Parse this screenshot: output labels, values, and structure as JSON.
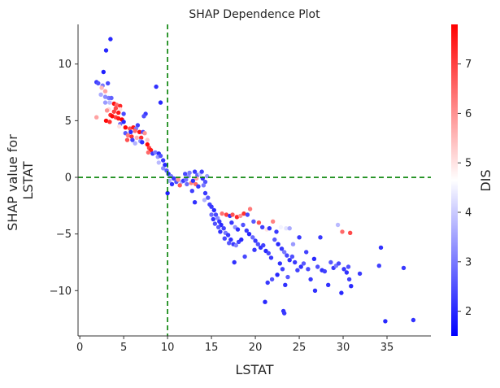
{
  "chart_data": {
    "type": "scatter",
    "title": "SHAP Dependence Plot",
    "xlabel": "LSTAT",
    "ylabel": "SHAP value for\nLSTAT",
    "xlim": [
      -0.2,
      40
    ],
    "ylim": [
      -14,
      13.5
    ],
    "xticks": [
      "0",
      "5",
      "10",
      "15",
      "20",
      "25",
      "30",
      "35"
    ],
    "yticks": [
      "10",
      "5",
      "0",
      "−5",
      "−10"
    ],
    "grid": false,
    "reference_lines": [
      {
        "orientation": "vertical",
        "value": 10,
        "color": "#008000",
        "style": "dashed"
      },
      {
        "orientation": "horizontal",
        "value": 0,
        "color": "#008000",
        "style": "dashed"
      }
    ],
    "colorbar": {
      "label": "DIS",
      "ticks": [
        "2",
        "3",
        "4",
        "5",
        "6",
        "7"
      ],
      "range": [
        1.5,
        7.8
      ],
      "colormap": [
        "#0000ff",
        "#ffffff",
        "#ff0000"
      ]
    },
    "points": [
      [
        3.5,
        12.2,
        2.0
      ],
      [
        3.0,
        11.2,
        2.0
      ],
      [
        2.7,
        9.3,
        1.9
      ],
      [
        1.9,
        8.4,
        2.2
      ],
      [
        2.1,
        8.3,
        2.5
      ],
      [
        2.6,
        8.1,
        3.0
      ],
      [
        3.2,
        8.3,
        2.4
      ],
      [
        8.7,
        8.0,
        2.1
      ],
      [
        9.2,
        6.6,
        2.0
      ],
      [
        2.5,
        7.9,
        5.5
      ],
      [
        2.9,
        7.6,
        5.8
      ],
      [
        2.4,
        7.3,
        3.6
      ],
      [
        2.9,
        7.1,
        3.2
      ],
      [
        3.3,
        7.0,
        3.0
      ],
      [
        3.6,
        7.0,
        2.7
      ],
      [
        2.9,
        6.6,
        3.4
      ],
      [
        3.4,
        6.6,
        3.8
      ],
      [
        3.9,
        6.5,
        7.6
      ],
      [
        4.2,
        6.4,
        6.5
      ],
      [
        4.6,
        6.3,
        7.3
      ],
      [
        4.1,
        6.1,
        6.9
      ],
      [
        3.3,
        6.0,
        5.1
      ],
      [
        4.6,
        6.0,
        5.0
      ],
      [
        3.1,
        5.9,
        6.0
      ],
      [
        3.9,
        5.8,
        7.0
      ],
      [
        4.4,
        5.7,
        7.5
      ],
      [
        5.0,
        5.6,
        2.4
      ],
      [
        3.5,
        5.5,
        7.2
      ],
      [
        3.7,
        5.4,
        7.7
      ],
      [
        4.1,
        5.3,
        7.0
      ],
      [
        4.4,
        5.2,
        7.5
      ],
      [
        4.8,
        5.1,
        7.8
      ],
      [
        1.9,
        5.3,
        5.8
      ],
      [
        3.0,
        5.0,
        7.7
      ],
      [
        3.4,
        4.9,
        7.2
      ],
      [
        4.6,
        4.7,
        2.8
      ],
      [
        5.0,
        4.9,
        2.0
      ],
      [
        4.5,
        4.5,
        5.0
      ],
      [
        5.2,
        4.4,
        7.7
      ],
      [
        5.7,
        4.3,
        6.8
      ],
      [
        6.1,
        4.4,
        7.5
      ],
      [
        6.6,
        4.6,
        2.3
      ],
      [
        6.4,
        4.3,
        3.0
      ],
      [
        5.8,
        4.0,
        2.0
      ],
      [
        6.3,
        4.1,
        6.5
      ],
      [
        6.8,
        4.0,
        7.6
      ],
      [
        7.2,
        4.0,
        2.4
      ],
      [
        7.4,
        3.9,
        6.0
      ],
      [
        5.2,
        3.9,
        2.6
      ],
      [
        5.5,
        3.7,
        6.3
      ],
      [
        5.9,
        3.6,
        7.2
      ],
      [
        6.5,
        3.5,
        5.6
      ],
      [
        7.0,
        3.5,
        7.3
      ],
      [
        5.4,
        3.3,
        6.8
      ],
      [
        6.0,
        3.3,
        2.3
      ],
      [
        6.9,
        3.2,
        3.3
      ],
      [
        7.7,
        3.3,
        5.3
      ],
      [
        6.3,
        3.0,
        3.7
      ],
      [
        7.1,
        3.1,
        2.1
      ],
      [
        7.5,
        5.6,
        2.2
      ],
      [
        7.3,
        5.4,
        2.5
      ],
      [
        7.7,
        2.9,
        7.7
      ],
      [
        7.9,
        2.6,
        7.0
      ],
      [
        8.1,
        2.4,
        7.5
      ],
      [
        7.8,
        2.2,
        6.5
      ],
      [
        8.3,
        2.1,
        2.2
      ],
      [
        8.6,
        2.2,
        3.0
      ],
      [
        9.0,
        2.1,
        2.0
      ],
      [
        8.9,
        1.8,
        3.4
      ],
      [
        9.2,
        1.9,
        2.5
      ],
      [
        9.5,
        1.5,
        2.2
      ],
      [
        9.0,
        1.3,
        3.8
      ],
      [
        9.7,
        1.1,
        2.0
      ],
      [
        9.5,
        0.8,
        3.2
      ],
      [
        9.9,
        0.6,
        2.6
      ],
      [
        10.1,
        0.3,
        2.0
      ],
      [
        10.4,
        0.1,
        3.0
      ],
      [
        10.7,
        -0.1,
        2.2
      ],
      [
        10.2,
        -0.3,
        3.6
      ],
      [
        10.0,
        -1.4,
        1.9
      ],
      [
        11.0,
        -0.4,
        2.5
      ],
      [
        11.2,
        -0.2,
        6.0
      ],
      [
        11.6,
        -0.4,
        3.7
      ],
      [
        11.8,
        -0.3,
        2.2
      ],
      [
        12.1,
        -0.2,
        2.9
      ],
      [
        12.4,
        0.1,
        3.3
      ],
      [
        12.7,
        -0.5,
        6.2
      ],
      [
        12.9,
        -0.3,
        2.1
      ],
      [
        13.2,
        -0.6,
        6.5
      ],
      [
        12.0,
        0.3,
        2.4
      ],
      [
        12.5,
        0.4,
        3.0
      ],
      [
        13.1,
        0.5,
        2.2
      ],
      [
        13.4,
        0.2,
        2.7
      ],
      [
        13.7,
        0.3,
        3.9
      ],
      [
        13.9,
        0.5,
        2.3
      ],
      [
        13.3,
        -0.1,
        5.8
      ],
      [
        12.2,
        -0.6,
        2.8
      ],
      [
        11.4,
        -0.7,
        6.7
      ],
      [
        10.5,
        -0.6,
        2.1
      ],
      [
        14.0,
        -0.1,
        2.1
      ],
      [
        14.3,
        -0.4,
        2.5
      ],
      [
        14.5,
        0.1,
        3.4
      ],
      [
        14.1,
        -0.7,
        3.0
      ],
      [
        13.5,
        -0.8,
        2.2
      ],
      [
        12.8,
        -1.2,
        2.3
      ],
      [
        14.3,
        -1.4,
        2.2
      ],
      [
        13.1,
        -2.2,
        2.1
      ],
      [
        14.6,
        -1.8,
        2.6
      ],
      [
        14.8,
        -2.4,
        2.3
      ],
      [
        14.2,
        -2.0,
        3.7
      ],
      [
        15.0,
        -2.6,
        2.2
      ],
      [
        15.3,
        -2.9,
        2.0
      ],
      [
        15.0,
        -3.3,
        2.8
      ],
      [
        15.5,
        -3.3,
        2.4
      ],
      [
        15.2,
        -3.7,
        2.1
      ],
      [
        15.7,
        -3.6,
        3.2
      ],
      [
        15.9,
        -3.9,
        2.2
      ],
      [
        15.4,
        -4.1,
        2.5
      ],
      [
        16.1,
        -4.2,
        2.0
      ],
      [
        15.8,
        -4.4,
        2.6
      ],
      [
        16.4,
        -4.5,
        2.3
      ],
      [
        16.0,
        -4.8,
        2.1
      ],
      [
        16.6,
        -4.9,
        3.0
      ],
      [
        16.9,
        -5.1,
        2.2
      ],
      [
        16.5,
        -5.4,
        2.4
      ],
      [
        17.2,
        -5.5,
        2.1
      ],
      [
        17.0,
        -5.8,
        2.6
      ],
      [
        17.5,
        -5.9,
        2.2
      ],
      [
        17.8,
        -6.0,
        3.1
      ],
      [
        18.1,
        -5.7,
        2.3
      ],
      [
        18.4,
        -5.5,
        2.0
      ],
      [
        16.2,
        -3.2,
        6.4
      ],
      [
        16.7,
        -3.3,
        7.0
      ],
      [
        17.1,
        -3.4,
        2.1
      ],
      [
        17.4,
        -3.3,
        6.8
      ],
      [
        17.9,
        -3.5,
        7.3
      ],
      [
        18.3,
        -3.4,
        6.0
      ],
      [
        18.7,
        -3.2,
        7.2
      ],
      [
        19.1,
        -3.3,
        2.4
      ],
      [
        19.4,
        -2.8,
        6.3
      ],
      [
        19.8,
        -3.9,
        2.6
      ],
      [
        17.3,
        -4.0,
        2.2
      ],
      [
        17.7,
        -4.4,
        3.3
      ],
      [
        18.0,
        -4.6,
        2.1
      ],
      [
        18.6,
        -4.2,
        2.5
      ],
      [
        19.0,
        -4.7,
        2.2
      ],
      [
        19.3,
        -5.0,
        2.0
      ],
      [
        19.7,
        -5.3,
        2.8
      ],
      [
        20.0,
        -5.6,
        2.2
      ],
      [
        20.3,
        -5.9,
        2.5
      ],
      [
        20.6,
        -6.2,
        2.1
      ],
      [
        20.9,
        -6.0,
        2.3
      ],
      [
        21.2,
        -6.5,
        2.0
      ],
      [
        21.5,
        -6.7,
        2.4
      ],
      [
        21.8,
        -7.1,
        2.2
      ],
      [
        20.4,
        -4.0,
        6.8
      ],
      [
        20.8,
        -4.4,
        2.3
      ],
      [
        21.3,
        -4.6,
        5.0
      ],
      [
        21.6,
        -4.5,
        2.1
      ],
      [
        22.0,
        -3.9,
        6.2
      ],
      [
        22.4,
        -4.8,
        2.2
      ],
      [
        22.9,
        -4.4,
        4.5
      ],
      [
        23.5,
        -4.5,
        4.3
      ],
      [
        23.9,
        -4.5,
        3.6
      ],
      [
        22.2,
        -5.5,
        2.6
      ],
      [
        22.6,
        -5.9,
        2.0
      ],
      [
        23.0,
        -6.3,
        2.2
      ],
      [
        23.3,
        -6.6,
        3.0
      ],
      [
        23.6,
        -6.9,
        2.4
      ],
      [
        23.9,
        -7.3,
        2.1
      ],
      [
        24.2,
        -7.0,
        2.5
      ],
      [
        24.5,
        -7.5,
        2.2
      ],
      [
        22.8,
        -7.6,
        2.1
      ],
      [
        23.1,
        -8.1,
        2.3
      ],
      [
        22.5,
        -8.6,
        2.0
      ],
      [
        21.9,
        -9.0,
        2.5
      ],
      [
        21.4,
        -9.3,
        2.2
      ],
      [
        23.4,
        -9.5,
        2.1
      ],
      [
        23.7,
        -8.8,
        2.6
      ],
      [
        21.1,
        -11.0,
        2.0
      ],
      [
        23.2,
        -11.8,
        2.1
      ],
      [
        23.3,
        -12.0,
        2.2
      ],
      [
        24.8,
        -8.2,
        2.3
      ],
      [
        25.2,
        -7.9,
        2.1
      ],
      [
        25.5,
        -7.6,
        2.6
      ],
      [
        25.0,
        -5.3,
        2.2
      ],
      [
        26.0,
        -8.1,
        2.4
      ],
      [
        26.3,
        -9.0,
        2.2
      ],
      [
        26.7,
        -7.2,
        2.0
      ],
      [
        27.1,
        -7.9,
        2.5
      ],
      [
        27.4,
        -5.3,
        2.2
      ],
      [
        27.6,
        -8.2,
        2.1
      ],
      [
        27.9,
        -8.3,
        2.3
      ],
      [
        28.3,
        -9.5,
        2.1
      ],
      [
        28.6,
        -7.5,
        2.6
      ],
      [
        28.9,
        -8.0,
        2.2
      ],
      [
        29.2,
        -7.8,
        3.0
      ],
      [
        29.5,
        -7.6,
        2.4
      ],
      [
        29.8,
        -10.2,
        2.0
      ],
      [
        30.1,
        -8.1,
        2.2
      ],
      [
        30.4,
        -8.4,
        2.1
      ],
      [
        30.7,
        -9.0,
        2.3
      ],
      [
        30.9,
        -9.6,
        2.0
      ],
      [
        30.6,
        -7.9,
        2.5
      ],
      [
        31.9,
        -8.5,
        2.2
      ],
      [
        26.8,
        -10.0,
        2.1
      ],
      [
        29.4,
        -4.2,
        3.8
      ],
      [
        29.9,
        -4.8,
        6.5
      ],
      [
        30.8,
        -4.9,
        6.9
      ],
      [
        34.3,
        -6.2,
        2.1
      ],
      [
        34.1,
        -7.8,
        2.3
      ],
      [
        36.9,
        -8.0,
        2.2
      ],
      [
        34.8,
        -12.7,
        2.0
      ],
      [
        38.0,
        -12.6,
        2.1
      ],
      [
        24.3,
        -5.9,
        3.4
      ],
      [
        25.8,
        -6.6,
        2.3
      ],
      [
        18.8,
        -7.0,
        2.4
      ],
      [
        17.6,
        -7.5,
        2.1
      ],
      [
        19.9,
        -6.4,
        2.2
      ]
    ]
  }
}
